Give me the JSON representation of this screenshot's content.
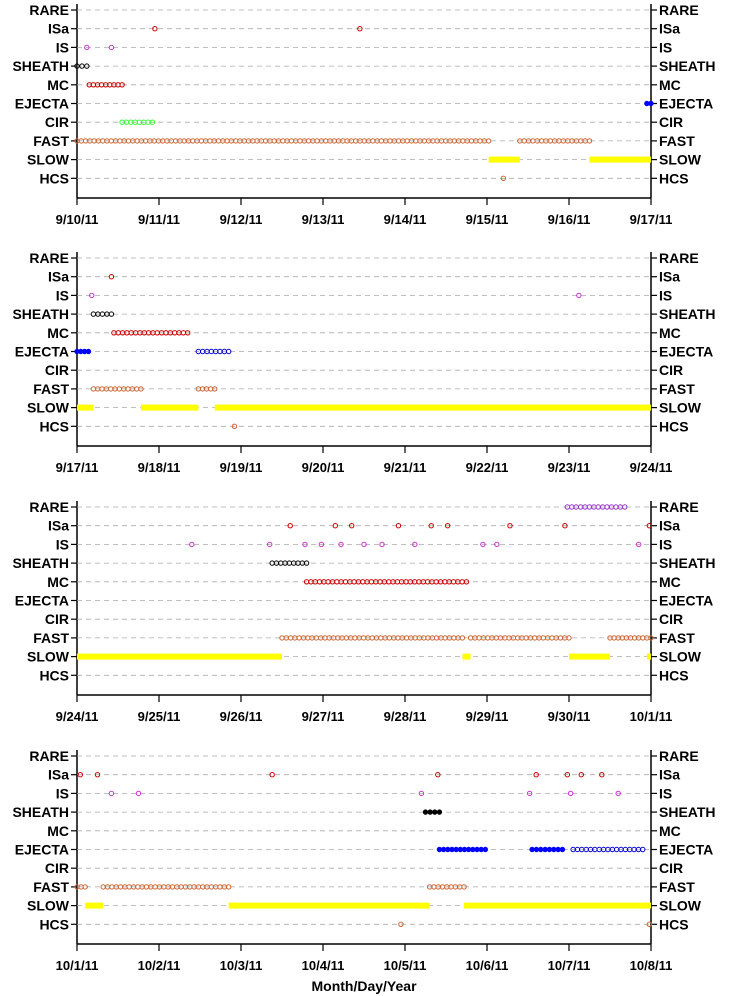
{
  "figure": {
    "xlabel": "Month/Day/Year",
    "category_order": [
      "RARE",
      "ISa",
      "IS",
      "SHEATH",
      "MC",
      "EJECTA",
      "CIR",
      "FAST",
      "SLOW",
      "HCS"
    ],
    "colors": {
      "RARE": "#9933cc",
      "ISa": "#cc0000",
      "IS": "#cc33cc",
      "SHEATH": "#000000",
      "MC": "#cc0000",
      "EJECTA_open": "#0000cc",
      "EJECTA_filled": "#0000ff",
      "CIR": "#33ff33",
      "FAST": "#cc6633",
      "SLOW": "#ffff00",
      "HCS": "#cc6633"
    }
  },
  "chart_data": [
    {
      "type": "scatter",
      "x_range_days": [
        0,
        7
      ],
      "xticks": [
        "9/10/11",
        "9/11/11",
        "9/12/11",
        "9/13/11",
        "9/14/11",
        "9/15/11",
        "9/16/11",
        "9/17/11"
      ],
      "series": [
        {
          "name": "ISa",
          "points": [
            0.95,
            3.45
          ]
        },
        {
          "name": "IS",
          "points": [
            0.12,
            0.42
          ]
        },
        {
          "name": "SHEATH",
          "spans": [
            [
              0.0,
              0.12
            ]
          ]
        },
        {
          "name": "MC",
          "spans": [
            [
              0.15,
              0.55
            ]
          ]
        },
        {
          "name": "EJECTA",
          "spans": [
            [
              6.95,
              7.0
            ]
          ],
          "filled": true
        },
        {
          "name": "CIR",
          "spans": [
            [
              0.55,
              0.92
            ]
          ]
        },
        {
          "name": "FAST",
          "spans": [
            [
              0.0,
              5.02
            ],
            [
              5.4,
              6.25
            ]
          ]
        },
        {
          "name": "SLOW",
          "spans": [
            [
              5.02,
              5.4
            ],
            [
              6.25,
              7.0
            ]
          ]
        },
        {
          "name": "HCS",
          "points": [
            5.2
          ]
        }
      ]
    },
    {
      "type": "scatter",
      "x_range_days": [
        0,
        7
      ],
      "xticks": [
        "9/17/11",
        "9/18/11",
        "9/19/11",
        "9/20/11",
        "9/21/11",
        "9/22/11",
        "9/23/11",
        "9/24/11"
      ],
      "series": [
        {
          "name": "ISa",
          "points": [
            0.42
          ]
        },
        {
          "name": "IS",
          "points": [
            0.18,
            6.12
          ]
        },
        {
          "name": "SHEATH",
          "spans": [
            [
              0.2,
              0.42
            ]
          ]
        },
        {
          "name": "MC",
          "spans": [
            [
              0.45,
              1.35
            ]
          ]
        },
        {
          "name": "EJECTA",
          "spans": [
            [
              0.0,
              0.14
            ]
          ],
          "filled": true
        },
        {
          "name": "EJECTA",
          "spans": [
            [
              1.48,
              1.85
            ]
          ]
        },
        {
          "name": "FAST",
          "spans": [
            [
              0.2,
              0.78
            ],
            [
              1.48,
              1.68
            ]
          ]
        },
        {
          "name": "SLOW",
          "spans": [
            [
              0.0,
              0.2
            ],
            [
              0.78,
              1.48
            ],
            [
              1.68,
              7.0
            ]
          ]
        },
        {
          "name": "HCS",
          "points": [
            1.92
          ]
        }
      ]
    },
    {
      "type": "scatter",
      "x_range_days": [
        0,
        7
      ],
      "xticks": [
        "9/24/11",
        "9/25/11",
        "9/26/11",
        "9/27/11",
        "9/28/11",
        "9/29/11",
        "9/30/11",
        "10/1/11"
      ],
      "series": [
        {
          "name": "RARE",
          "spans": [
            [
              5.98,
              6.68
            ]
          ]
        },
        {
          "name": "ISa",
          "points": [
            2.6,
            3.15,
            3.35,
            3.92,
            4.32,
            4.52,
            5.28,
            5.95,
            6.98
          ]
        },
        {
          "name": "IS",
          "points": [
            1.4,
            2.35,
            2.78,
            2.98,
            3.22,
            3.5,
            3.72,
            4.12,
            4.95,
            5.12,
            6.85
          ]
        },
        {
          "name": "SHEATH",
          "spans": [
            [
              2.38,
              2.8
            ]
          ]
        },
        {
          "name": "MC",
          "spans": [
            [
              2.8,
              4.75
            ]
          ]
        },
        {
          "name": "FAST",
          "spans": [
            [
              2.5,
              4.7
            ],
            [
              4.8,
              6.0
            ],
            [
              6.5,
              7.0
            ]
          ]
        },
        {
          "name": "SLOW",
          "spans": [
            [
              0.0,
              2.5
            ],
            [
              4.7,
              4.8
            ],
            [
              6.0,
              6.5
            ],
            [
              6.95,
              7.0
            ]
          ]
        }
      ]
    },
    {
      "type": "scatter",
      "x_range_days": [
        0,
        7
      ],
      "xticks": [
        "10/1/11",
        "10/2/11",
        "10/3/11",
        "10/4/11",
        "10/5/11",
        "10/6/11",
        "10/7/11",
        "10/8/11"
      ],
      "series": [
        {
          "name": "ISa",
          "points": [
            0.04,
            0.25,
            2.38,
            4.4,
            5.6,
            5.98,
            6.15,
            6.4
          ]
        },
        {
          "name": "IS",
          "points": [
            0.42,
            0.75,
            4.2,
            5.52,
            6.02,
            6.6
          ]
        },
        {
          "name": "SHEATH",
          "spans": [
            [
              4.25,
              4.42
            ]
          ],
          "filled": true
        },
        {
          "name": "EJECTA",
          "spans": [
            [
              4.42,
              4.98
            ],
            [
              5.55,
              5.92
            ]
          ],
          "filled": true
        },
        {
          "name": "EJECTA",
          "spans": [
            [
              6.05,
              6.9
            ]
          ]
        },
        {
          "name": "FAST",
          "spans": [
            [
              0.0,
              0.1
            ],
            [
              0.32,
              1.85
            ],
            [
              4.3,
              4.72
            ]
          ]
        },
        {
          "name": "SLOW",
          "spans": [
            [
              0.1,
              0.32
            ],
            [
              1.85,
              4.3
            ],
            [
              4.72,
              7.0
            ]
          ]
        },
        {
          "name": "HCS",
          "points": [
            3.95,
            6.98
          ]
        }
      ]
    }
  ]
}
